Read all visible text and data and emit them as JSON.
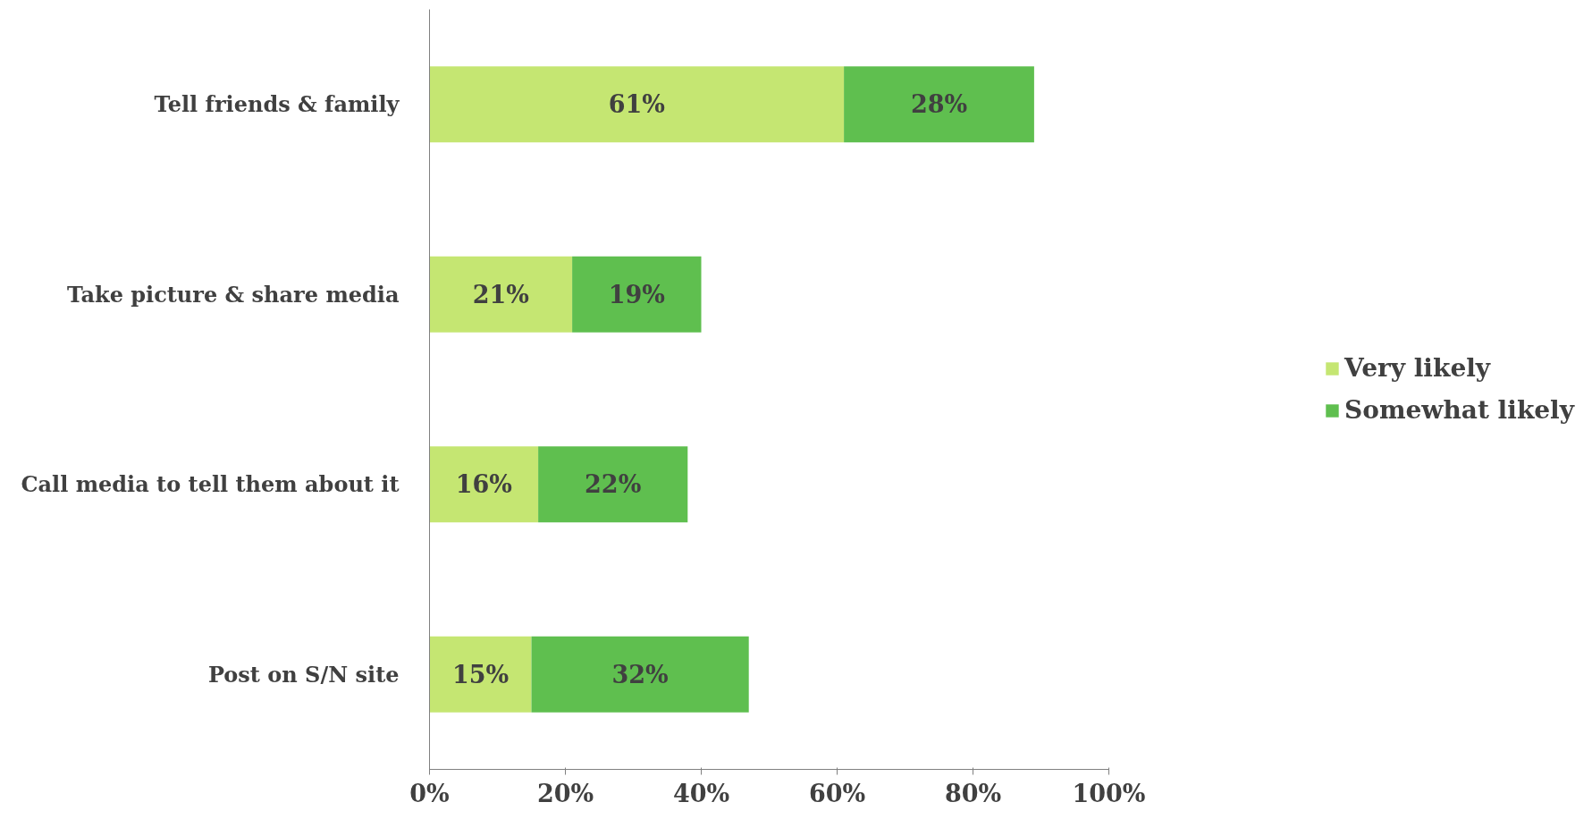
{
  "chart_data": {
    "type": "bar",
    "orientation": "horizontal",
    "stacked": true,
    "categories": [
      "Tell friends & family",
      "Take picture & share media",
      "Call media to tell them about it",
      "Post on S/N site"
    ],
    "series": [
      {
        "name": "Very likely",
        "color": "#c5e672",
        "values": [
          61,
          21,
          16,
          15
        ],
        "value_labels": [
          "61%",
          "21%",
          "16%",
          "15%"
        ]
      },
      {
        "name": "Somewhat likely",
        "color": "#5fbf4f",
        "values": [
          28,
          19,
          22,
          32
        ],
        "value_labels": [
          "28%",
          "19%",
          "22%",
          "32%"
        ]
      }
    ],
    "xlim": [
      0,
      100
    ],
    "xticks": [
      {
        "value": 0,
        "label": "0%"
      },
      {
        "value": 20,
        "label": "20%"
      },
      {
        "value": 40,
        "label": "40%"
      },
      {
        "value": 60,
        "label": "60%"
      },
      {
        "value": 80,
        "label": "80%"
      },
      {
        "value": 100,
        "label": "100%"
      }
    ],
    "grid": false,
    "legend": "right"
  }
}
